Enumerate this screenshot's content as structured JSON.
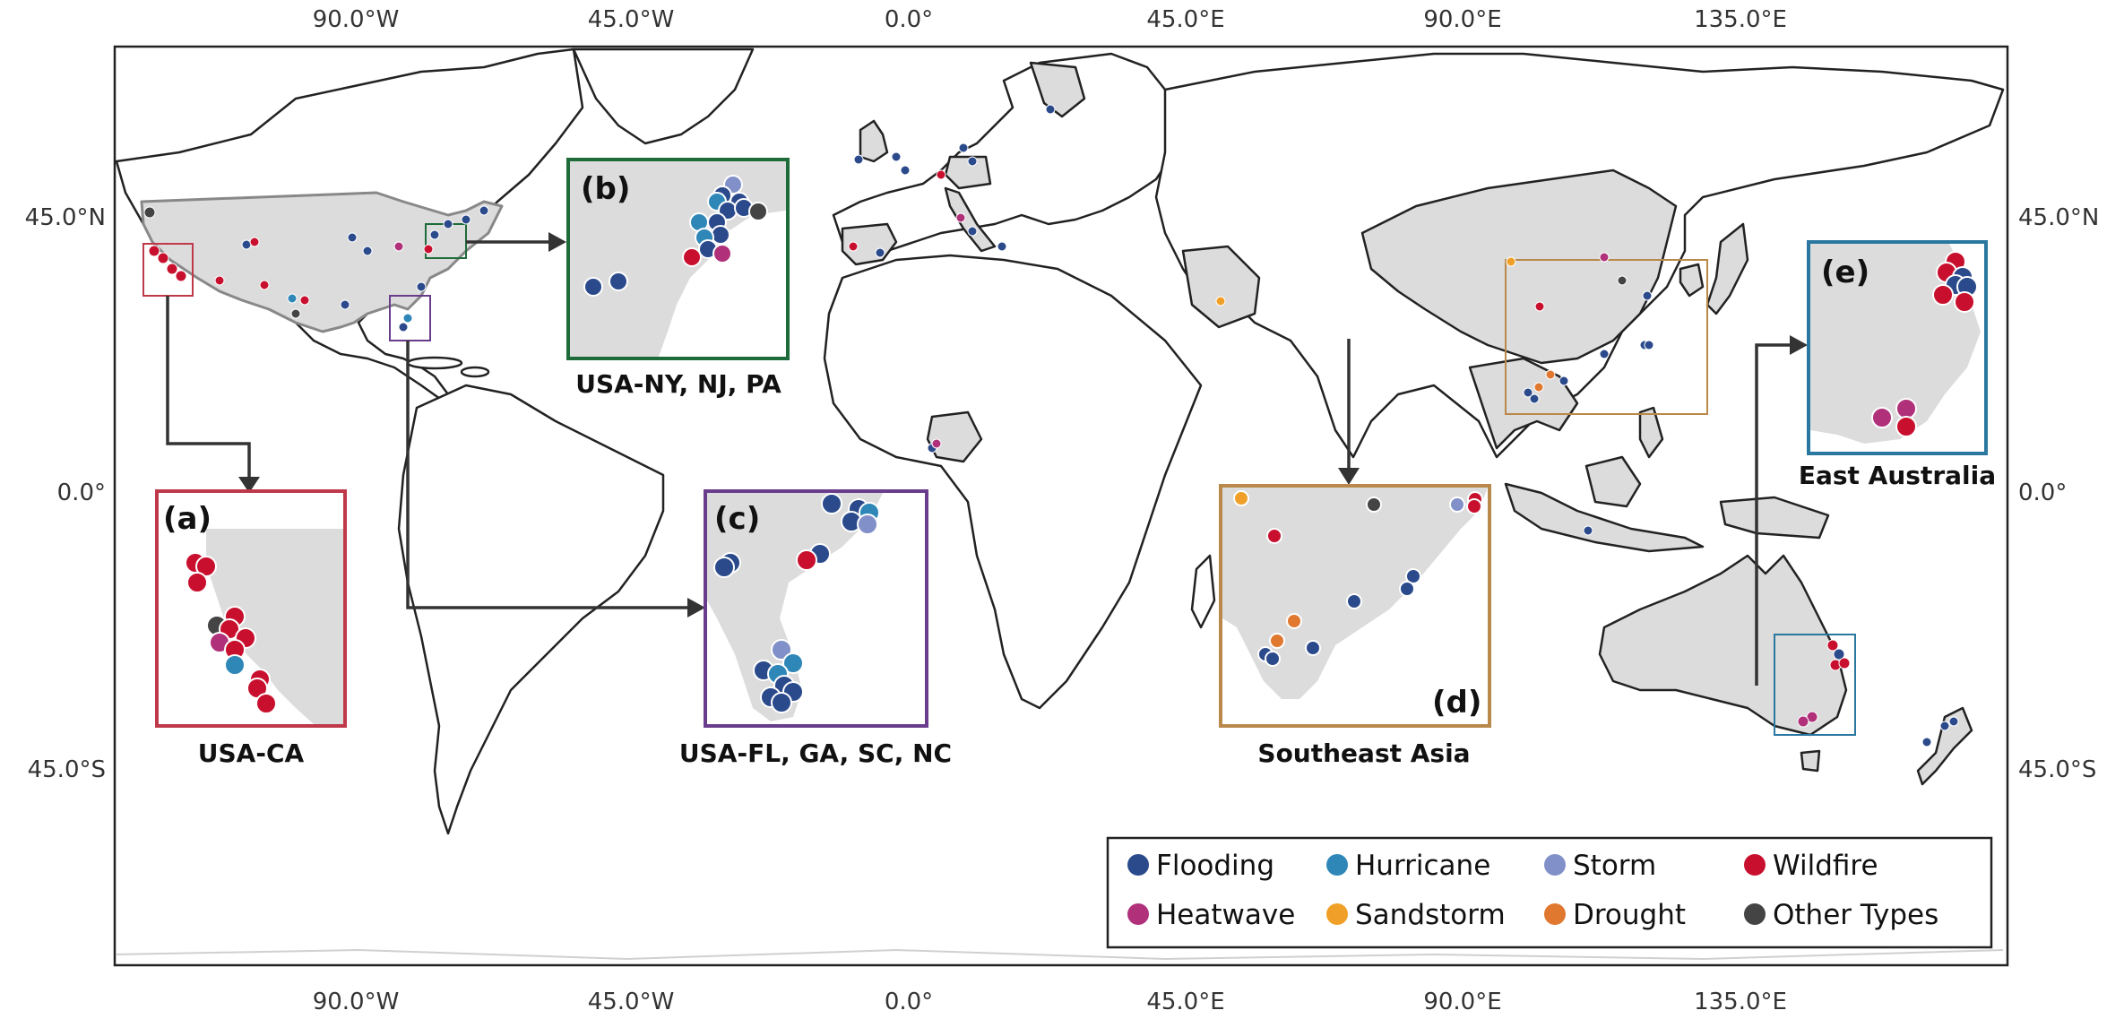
{
  "axes": {
    "top_ticks": [
      "90.0°W",
      "45.0°W",
      "0.0°",
      "45.0°E",
      "90.0°E",
      "135.0°E"
    ],
    "bottom_ticks": [
      "90.0°W",
      "45.0°W",
      "0.0°",
      "45.0°E",
      "90.0°E",
      "135.0°E"
    ],
    "left_ticks": [
      "45.0°N",
      "0.0°",
      "45.0°S"
    ],
    "right_ticks": [
      "45.0°N",
      "0.0°",
      "45.0°S"
    ]
  },
  "insets": {
    "a": {
      "label": "(a)",
      "caption": "USA-CA",
      "color": "#c0394b"
    },
    "b": {
      "label": "(b)",
      "caption": "USA-NY, NJ, PA",
      "color": "#1e6b3a"
    },
    "c": {
      "label": "(c)",
      "caption": "USA-FL, GA, SC, NC",
      "color": "#6a3d8c"
    },
    "d": {
      "label": "(d)",
      "caption": "Southeast Asia",
      "color": "#b8894a"
    },
    "e": {
      "label": "(e)",
      "caption": "East Australia",
      "color": "#2a77a0"
    }
  },
  "legend": {
    "items": [
      {
        "label": "Flooding",
        "color": "#2b4a8c"
      },
      {
        "label": "Hurricane",
        "color": "#2f87b8"
      },
      {
        "label": "Storm",
        "color": "#8190c8"
      },
      {
        "label": "Wildfire",
        "color": "#c8102e"
      },
      {
        "label": "Heatwave",
        "color": "#b0307a"
      },
      {
        "label": "Sandstorm",
        "color": "#f0a028"
      },
      {
        "label": "Drought",
        "color": "#e07830"
      },
      {
        "label": "Other Types",
        "color": "#444444"
      }
    ]
  },
  "colors": {
    "land_highlight": "#dcdcdc",
    "land_outline": "#222222",
    "border": "#d0d0d0",
    "arrow": "#333333"
  }
}
